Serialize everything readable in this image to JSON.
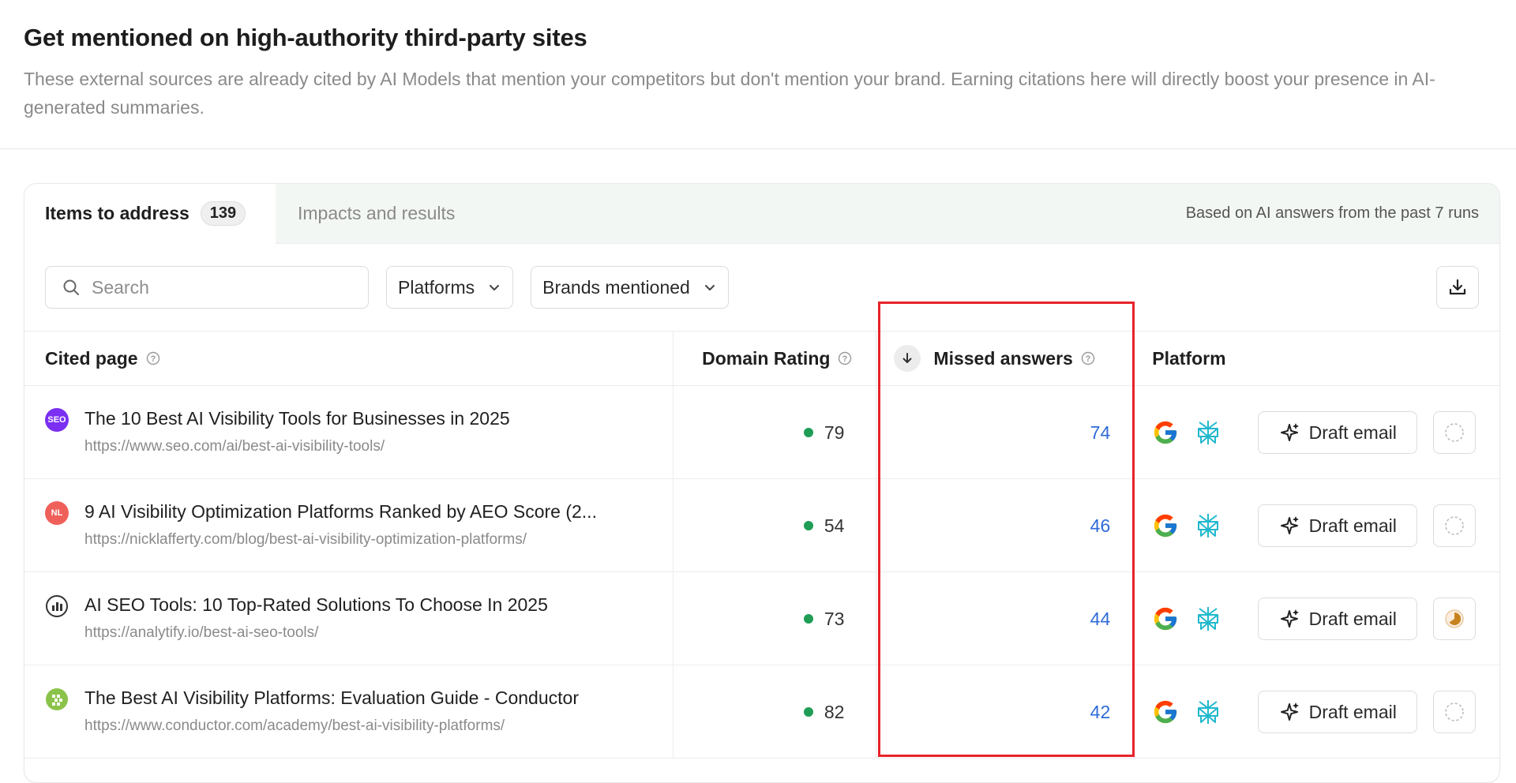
{
  "header": {
    "title": "Get mentioned on high-authority third-party sites",
    "description": "These external sources are already cited by AI Models that mention your competitors but don't mention your brand. Earning citations here will directly boost your presence in AI-generated summaries."
  },
  "tabs": {
    "active_label": "Items to address",
    "active_count": "139",
    "inactive_label": "Impacts and results",
    "note": "Based on AI answers from the past 7 runs"
  },
  "toolbar": {
    "search_placeholder": "Search",
    "platforms_label": "Platforms",
    "brands_label": "Brands mentioned"
  },
  "table": {
    "columns": {
      "cited_page": "Cited page",
      "domain_rating": "Domain Rating",
      "missed_answers": "Missed answers",
      "platform": "Platform"
    },
    "draft_label": "Draft email",
    "rows": [
      {
        "favicon_text": "SEO",
        "favicon_color": "#7b2ff2",
        "title": "The 10 Best AI Visibility Tools for Businesses in 2025",
        "url": "https://www.seo.com/ai/best-ai-visibility-tools/",
        "domain_rating": "79",
        "missed": "74",
        "status": "empty"
      },
      {
        "favicon_text": "NL",
        "favicon_color": "#f0605a",
        "title": "9 AI Visibility Optimization Platforms Ranked by AEO Score (2...",
        "url": "https://nicklafferty.com/blog/best-ai-visibility-optimization-platforms/",
        "domain_rating": "54",
        "missed": "46",
        "status": "empty"
      },
      {
        "favicon_text": "",
        "favicon_color": "#ffffff",
        "title": "AI SEO Tools: 10 Top-Rated Solutions To Choose In 2025",
        "url": "https://analytify.io/best-ai-seo-tools/",
        "domain_rating": "73",
        "missed": "44",
        "status": "partial"
      },
      {
        "favicon_text": "",
        "favicon_color": "#8bc34a",
        "title": "The Best AI Visibility Platforms: Evaluation Guide - Conductor",
        "url": "https://www.conductor.com/academy/best-ai-visibility-platforms/",
        "domain_rating": "82",
        "missed": "42",
        "status": "empty"
      }
    ]
  }
}
